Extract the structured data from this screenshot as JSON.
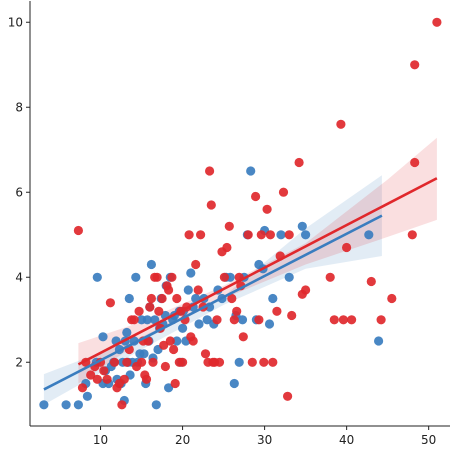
{
  "chart_data": {
    "type": "scatter",
    "title": "",
    "xlabel": "",
    "ylabel": "",
    "xlim": [
      1.4,
      52.6
    ],
    "ylim": [
      0.5,
      10.5
    ],
    "xticks": [
      10,
      20,
      30,
      40,
      50
    ],
    "yticks": [
      2,
      4,
      6,
      8,
      10
    ],
    "grid": false,
    "legend": "none",
    "series": [
      {
        "color": "#3A7DBF",
        "points": [
          [
            3.1,
            1.0
          ],
          [
            5.8,
            1.0
          ],
          [
            7.3,
            1.0
          ],
          [
            8.2,
            1.5
          ],
          [
            8.4,
            1.2
          ],
          [
            9.5,
            2.0
          ],
          [
            9.6,
            4.0
          ],
          [
            10.3,
            2.6
          ],
          [
            10.3,
            1.5
          ],
          [
            10.6,
            1.8
          ],
          [
            11.0,
            1.5
          ],
          [
            11.3,
            1.9
          ],
          [
            11.6,
            2.0
          ],
          [
            11.9,
            2.5
          ],
          [
            12.0,
            1.6
          ],
          [
            12.3,
            2.3
          ],
          [
            12.5,
            1.5
          ],
          [
            12.7,
            2.0
          ],
          [
            12.9,
            1.1
          ],
          [
            13.0,
            2.5
          ],
          [
            13.2,
            2.7
          ],
          [
            13.4,
            2.0
          ],
          [
            13.5,
            3.5
          ],
          [
            13.6,
            1.7
          ],
          [
            13.9,
            2.0
          ],
          [
            14.1,
            2.5
          ],
          [
            14.3,
            4.0
          ],
          [
            14.5,
            2.0
          ],
          [
            14.8,
            2.2
          ],
          [
            15.0,
            3.0
          ],
          [
            15.3,
            2.2
          ],
          [
            15.5,
            1.5
          ],
          [
            15.7,
            3.0
          ],
          [
            15.9,
            2.5
          ],
          [
            16.0,
            3.3
          ],
          [
            16.2,
            4.3
          ],
          [
            16.4,
            2.1
          ],
          [
            16.6,
            3.0
          ],
          [
            16.8,
            1.0
          ],
          [
            17.0,
            2.3
          ],
          [
            17.2,
            2.8
          ],
          [
            17.4,
            3.5
          ],
          [
            17.6,
            2.9
          ],
          [
            17.9,
            3.1
          ],
          [
            18.0,
            3.8
          ],
          [
            18.3,
            1.4
          ],
          [
            18.5,
            4.0
          ],
          [
            18.8,
            3.0
          ],
          [
            19.0,
            3.1
          ],
          [
            19.3,
            2.5
          ],
          [
            19.6,
            3.2
          ],
          [
            19.8,
            2.0
          ],
          [
            20.0,
            2.8
          ],
          [
            20.1,
            3.2
          ],
          [
            20.4,
            2.5
          ],
          [
            20.7,
            3.7
          ],
          [
            21.0,
            4.1
          ],
          [
            21.3,
            3.3
          ],
          [
            21.6,
            3.5
          ],
          [
            22.0,
            2.9
          ],
          [
            22.6,
            3.5
          ],
          [
            23.0,
            3.0
          ],
          [
            23.3,
            3.3
          ],
          [
            23.8,
            2.9
          ],
          [
            24.3,
            3.7
          ],
          [
            24.8,
            3.5
          ],
          [
            25.3,
            4.0
          ],
          [
            25.8,
            4.0
          ],
          [
            26.3,
            1.5
          ],
          [
            26.5,
            3.1
          ],
          [
            26.9,
            2.0
          ],
          [
            27.3,
            3.0
          ],
          [
            27.5,
            4.0
          ],
          [
            27.9,
            5.0
          ],
          [
            28.3,
            6.5
          ],
          [
            29.0,
            3.0
          ],
          [
            29.3,
            4.3
          ],
          [
            29.8,
            4.2
          ],
          [
            30.0,
            5.1
          ],
          [
            30.6,
            2.9
          ],
          [
            31.0,
            3.5
          ],
          [
            32.0,
            5.0
          ],
          [
            33.0,
            4.0
          ],
          [
            34.6,
            5.2
          ],
          [
            35.0,
            5.0
          ],
          [
            42.7,
            5.0
          ],
          [
            43.9,
            2.5
          ]
        ],
        "fit": {
          "x": [
            3.1,
            44.3
          ],
          "y": [
            1.36,
            5.45
          ]
        },
        "ci_lower": [
          [
            3.1,
            1.0
          ],
          [
            15,
            2.3
          ],
          [
            25,
            3.35
          ],
          [
            35,
            4.2
          ],
          [
            44.3,
            4.5
          ]
        ],
        "ci_upper": [
          [
            3.1,
            1.72
          ],
          [
            15,
            2.6
          ],
          [
            25,
            3.55
          ],
          [
            35,
            5.15
          ],
          [
            44.3,
            6.4
          ]
        ]
      },
      {
        "color": "#E0282C",
        "points": [
          [
            7.3,
            5.1
          ],
          [
            7.8,
            1.4
          ],
          [
            8.2,
            2.0
          ],
          [
            8.8,
            1.7
          ],
          [
            9.3,
            1.9
          ],
          [
            9.6,
            1.6
          ],
          [
            10.0,
            2.0
          ],
          [
            10.4,
            1.8
          ],
          [
            10.8,
            1.6
          ],
          [
            11.2,
            3.4
          ],
          [
            11.7,
            2.0
          ],
          [
            12.0,
            1.4
          ],
          [
            12.3,
            1.5
          ],
          [
            12.6,
            1.0
          ],
          [
            12.9,
            1.6
          ],
          [
            13.2,
            2.0
          ],
          [
            13.5,
            2.3
          ],
          [
            13.8,
            3.0
          ],
          [
            14.1,
            3.0
          ],
          [
            14.4,
            1.9
          ],
          [
            14.7,
            3.2
          ],
          [
            15.0,
            2.0
          ],
          [
            15.2,
            2.5
          ],
          [
            15.4,
            1.7
          ],
          [
            15.6,
            1.6
          ],
          [
            15.8,
            2.5
          ],
          [
            16.0,
            3.3
          ],
          [
            16.2,
            3.5
          ],
          [
            16.4,
            2.0
          ],
          [
            16.6,
            4.0
          ],
          [
            16.9,
            4.0
          ],
          [
            17.1,
            3.2
          ],
          [
            17.3,
            2.8
          ],
          [
            17.5,
            3.5
          ],
          [
            17.7,
            2.4
          ],
          [
            17.9,
            1.9
          ],
          [
            18.1,
            3.8
          ],
          [
            18.3,
            3.7
          ],
          [
            18.5,
            2.5
          ],
          [
            18.7,
            4.0
          ],
          [
            18.9,
            2.3
          ],
          [
            19.1,
            1.5
          ],
          [
            19.3,
            3.5
          ],
          [
            19.6,
            2.0
          ],
          [
            19.8,
            3.2
          ],
          [
            20.0,
            2.0
          ],
          [
            20.3,
            3.0
          ],
          [
            20.5,
            3.3
          ],
          [
            20.8,
            5.0
          ],
          [
            21.0,
            2.6
          ],
          [
            21.3,
            2.5
          ],
          [
            21.6,
            4.3
          ],
          [
            21.9,
            3.7
          ],
          [
            22.2,
            5.0
          ],
          [
            22.5,
            3.3
          ],
          [
            22.8,
            2.2
          ],
          [
            23.1,
            2.0
          ],
          [
            23.3,
            6.5
          ],
          [
            23.5,
            5.7
          ],
          [
            23.7,
            2.0
          ],
          [
            23.9,
            2.0
          ],
          [
            24.2,
            3.0
          ],
          [
            24.5,
            2.0
          ],
          [
            24.8,
            4.6
          ],
          [
            25.1,
            4.0
          ],
          [
            25.4,
            4.7
          ],
          [
            25.7,
            5.2
          ],
          [
            26.0,
            3.5
          ],
          [
            26.3,
            3.0
          ],
          [
            26.6,
            3.2
          ],
          [
            26.9,
            4.0
          ],
          [
            27.1,
            3.8
          ],
          [
            27.4,
            2.6
          ],
          [
            28.0,
            5.0
          ],
          [
            28.5,
            2.0
          ],
          [
            28.9,
            5.9
          ],
          [
            29.3,
            3.0
          ],
          [
            29.6,
            5.0
          ],
          [
            29.9,
            2.0
          ],
          [
            30.3,
            5.6
          ],
          [
            30.7,
            5.0
          ],
          [
            31.0,
            2.0
          ],
          [
            31.5,
            3.2
          ],
          [
            31.9,
            4.5
          ],
          [
            32.3,
            6.0
          ],
          [
            32.8,
            1.2
          ],
          [
            33.0,
            5.0
          ],
          [
            33.3,
            3.1
          ],
          [
            34.2,
            6.7
          ],
          [
            34.6,
            3.6
          ],
          [
            35.0,
            3.7
          ],
          [
            38.0,
            4.0
          ],
          [
            38.5,
            3.0
          ],
          [
            39.3,
            7.6
          ],
          [
            39.6,
            3.0
          ],
          [
            40.0,
            4.7
          ],
          [
            40.6,
            3.0
          ],
          [
            43.0,
            3.9
          ],
          [
            44.2,
            3.0
          ],
          [
            45.5,
            3.5
          ],
          [
            48.0,
            5.0
          ],
          [
            48.3,
            6.7
          ],
          [
            48.3,
            9.0
          ],
          [
            51.0,
            10.0
          ]
        ],
        "fit": {
          "x": [
            7.3,
            51.0
          ],
          "y": [
            1.95,
            6.33
          ]
        },
        "ci_lower": [
          [
            7.3,
            1.5
          ],
          [
            15,
            2.5
          ],
          [
            25,
            3.5
          ],
          [
            35,
            4.3
          ],
          [
            45,
            4.95
          ],
          [
            51,
            5.35
          ]
        ],
        "ci_upper": [
          [
            7.3,
            2.45
          ],
          [
            15,
            2.95
          ],
          [
            25,
            3.8
          ],
          [
            35,
            4.8
          ],
          [
            45,
            6.3
          ],
          [
            51,
            7.28
          ]
        ]
      }
    ]
  }
}
